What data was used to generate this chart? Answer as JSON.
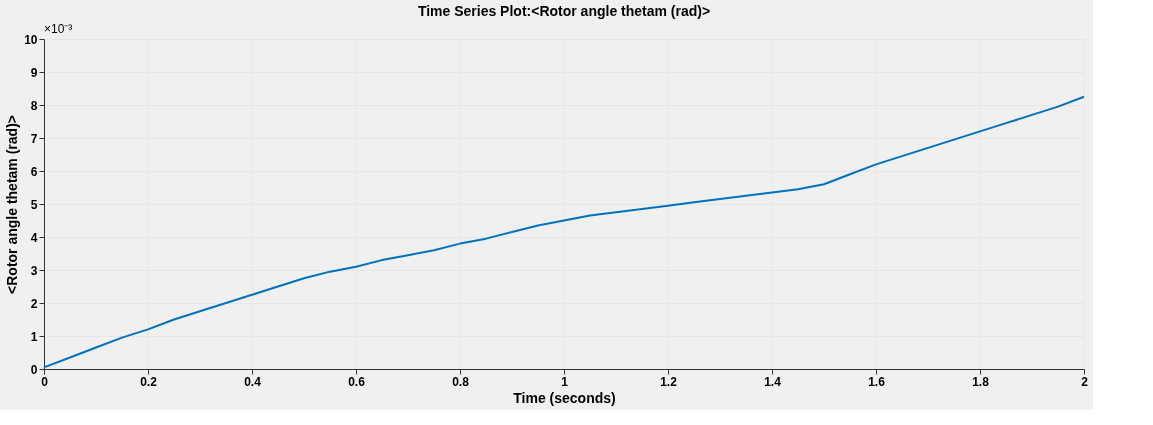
{
  "chart_data": {
    "type": "line",
    "title": "Time Series Plot:<Rotor angle thetam (rad)>",
    "xlabel": "Time (seconds)",
    "ylabel": "<Rotor angle thetam (rad)>",
    "annotations": [
      "×10⁻³"
    ],
    "x": [
      0,
      0.05,
      0.1,
      0.15,
      0.2,
      0.25,
      0.3,
      0.35,
      0.4,
      0.45,
      0.5,
      0.55,
      0.6,
      0.65,
      0.7,
      0.75,
      0.8,
      0.85,
      0.9,
      0.95,
      1.0,
      1.05,
      1.1,
      1.15,
      1.2,
      1.25,
      1.3,
      1.35,
      1.4,
      1.45,
      1.5,
      1.55,
      1.6,
      1.65,
      1.7,
      1.75,
      1.8,
      1.85,
      1.9,
      1.95,
      2.0
    ],
    "series": [
      {
        "color": "#0072bd",
        "values": [
          0.05,
          0.35,
          0.65,
          0.95,
          1.2,
          1.5,
          1.75,
          2.0,
          2.25,
          2.5,
          2.75,
          2.95,
          3.1,
          3.3,
          3.45,
          3.6,
          3.8,
          3.95,
          4.15,
          4.35,
          4.5,
          4.65,
          4.75,
          4.85,
          4.95,
          5.05,
          5.15,
          5.25,
          5.35,
          5.45,
          5.6,
          5.9,
          6.2,
          6.45,
          6.7,
          6.95,
          7.2,
          7.45,
          7.7,
          7.95,
          8.25
        ]
      }
    ],
    "xlim": [
      0,
      2
    ],
    "xticks": [
      0,
      0.2,
      0.4,
      0.6,
      0.8,
      1,
      1.2,
      1.4,
      1.6,
      1.8,
      2
    ],
    "ylim": [
      0,
      10
    ],
    "yticks": [
      0,
      1,
      2,
      3,
      4,
      5,
      6,
      7,
      8,
      9,
      10
    ],
    "grid": true,
    "legend": false,
    "marker": "none",
    "line_style": "solid"
  }
}
